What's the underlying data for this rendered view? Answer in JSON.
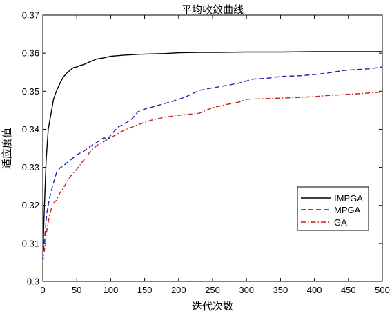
{
  "chart_data": {
    "type": "line",
    "title": "平均收敛曲线",
    "xlabel": "迭代次数",
    "ylabel": "适应度值",
    "xlim": [
      0,
      500
    ],
    "ylim": [
      0.3,
      0.37
    ],
    "x_ticks": [
      0,
      50,
      100,
      150,
      200,
      250,
      300,
      350,
      400,
      450,
      500
    ],
    "y_ticks": [
      0.3,
      0.31,
      0.32,
      0.33,
      0.34,
      0.35,
      0.36,
      0.37
    ],
    "x_tick_labels": [
      "0",
      "50",
      "100",
      "150",
      "200",
      "250",
      "300",
      "350",
      "400",
      "450",
      "500"
    ],
    "y_tick_labels": [
      "0.3",
      "0.31",
      "0.32",
      "0.33",
      "0.34",
      "0.35",
      "0.36",
      "0.37"
    ],
    "grid": false,
    "legend_position": "right",
    "series": [
      {
        "name": "IMPGA",
        "color": "#000000",
        "dash": "solid",
        "x": [
          0,
          2,
          5,
          8,
          12,
          16,
          20,
          25,
          30,
          35,
          40,
          45,
          50,
          55,
          60,
          70,
          80,
          90,
          100,
          120,
          140,
          160,
          180,
          200,
          230,
          260,
          300,
          350,
          400,
          450,
          500
        ],
        "y": [
          0.306,
          0.318,
          0.332,
          0.34,
          0.344,
          0.348,
          0.35,
          0.352,
          0.3537,
          0.3547,
          0.3555,
          0.3562,
          0.3564,
          0.3568,
          0.357,
          0.3578,
          0.3585,
          0.3588,
          0.3592,
          0.3595,
          0.3597,
          0.3598,
          0.3599,
          0.3601,
          0.3602,
          0.3602,
          0.3603,
          0.3603,
          0.3604,
          0.3604,
          0.3604
        ]
      },
      {
        "name": "MPGA",
        "color": "#1f1fb4",
        "dash": "dashed",
        "x": [
          0,
          3,
          6,
          10,
          15,
          20,
          25,
          30,
          40,
          50,
          60,
          70,
          80,
          90,
          95,
          100,
          110,
          120,
          130,
          140,
          150,
          170,
          190,
          210,
          230,
          250,
          270,
          290,
          310,
          330,
          350,
          380,
          400,
          420,
          440,
          460,
          480,
          500
        ],
        "y": [
          0.306,
          0.312,
          0.318,
          0.322,
          0.3255,
          0.3285,
          0.3298,
          0.3304,
          0.3318,
          0.3333,
          0.3342,
          0.3355,
          0.3366,
          0.3378,
          0.3373,
          0.3384,
          0.3405,
          0.3414,
          0.3425,
          0.3446,
          0.3453,
          0.3463,
          0.3473,
          0.3485,
          0.3502,
          0.3509,
          0.3515,
          0.3522,
          0.3532,
          0.3534,
          0.3539,
          0.3541,
          0.3544,
          0.3548,
          0.3554,
          0.3557,
          0.3559,
          0.3564
        ]
      },
      {
        "name": "GA",
        "color": "#c81e1e",
        "dash": "dashdot",
        "x": [
          0,
          3,
          6,
          10,
          15,
          20,
          25,
          30,
          40,
          50,
          60,
          70,
          80,
          90,
          100,
          110,
          120,
          140,
          160,
          180,
          200,
          230,
          250,
          270,
          290,
          300,
          330,
          350,
          380,
          400,
          420,
          450,
          470,
          500
        ],
        "y": [
          0.305,
          0.309,
          0.3135,
          0.3175,
          0.3205,
          0.3213,
          0.3232,
          0.3245,
          0.3275,
          0.3295,
          0.3318,
          0.3342,
          0.3358,
          0.3368,
          0.3378,
          0.3388,
          0.3398,
          0.3412,
          0.3424,
          0.3432,
          0.3437,
          0.3442,
          0.3457,
          0.3465,
          0.3472,
          0.3479,
          0.3481,
          0.3482,
          0.3484,
          0.3486,
          0.3489,
          0.3492,
          0.3494,
          0.3498
        ]
      }
    ]
  }
}
